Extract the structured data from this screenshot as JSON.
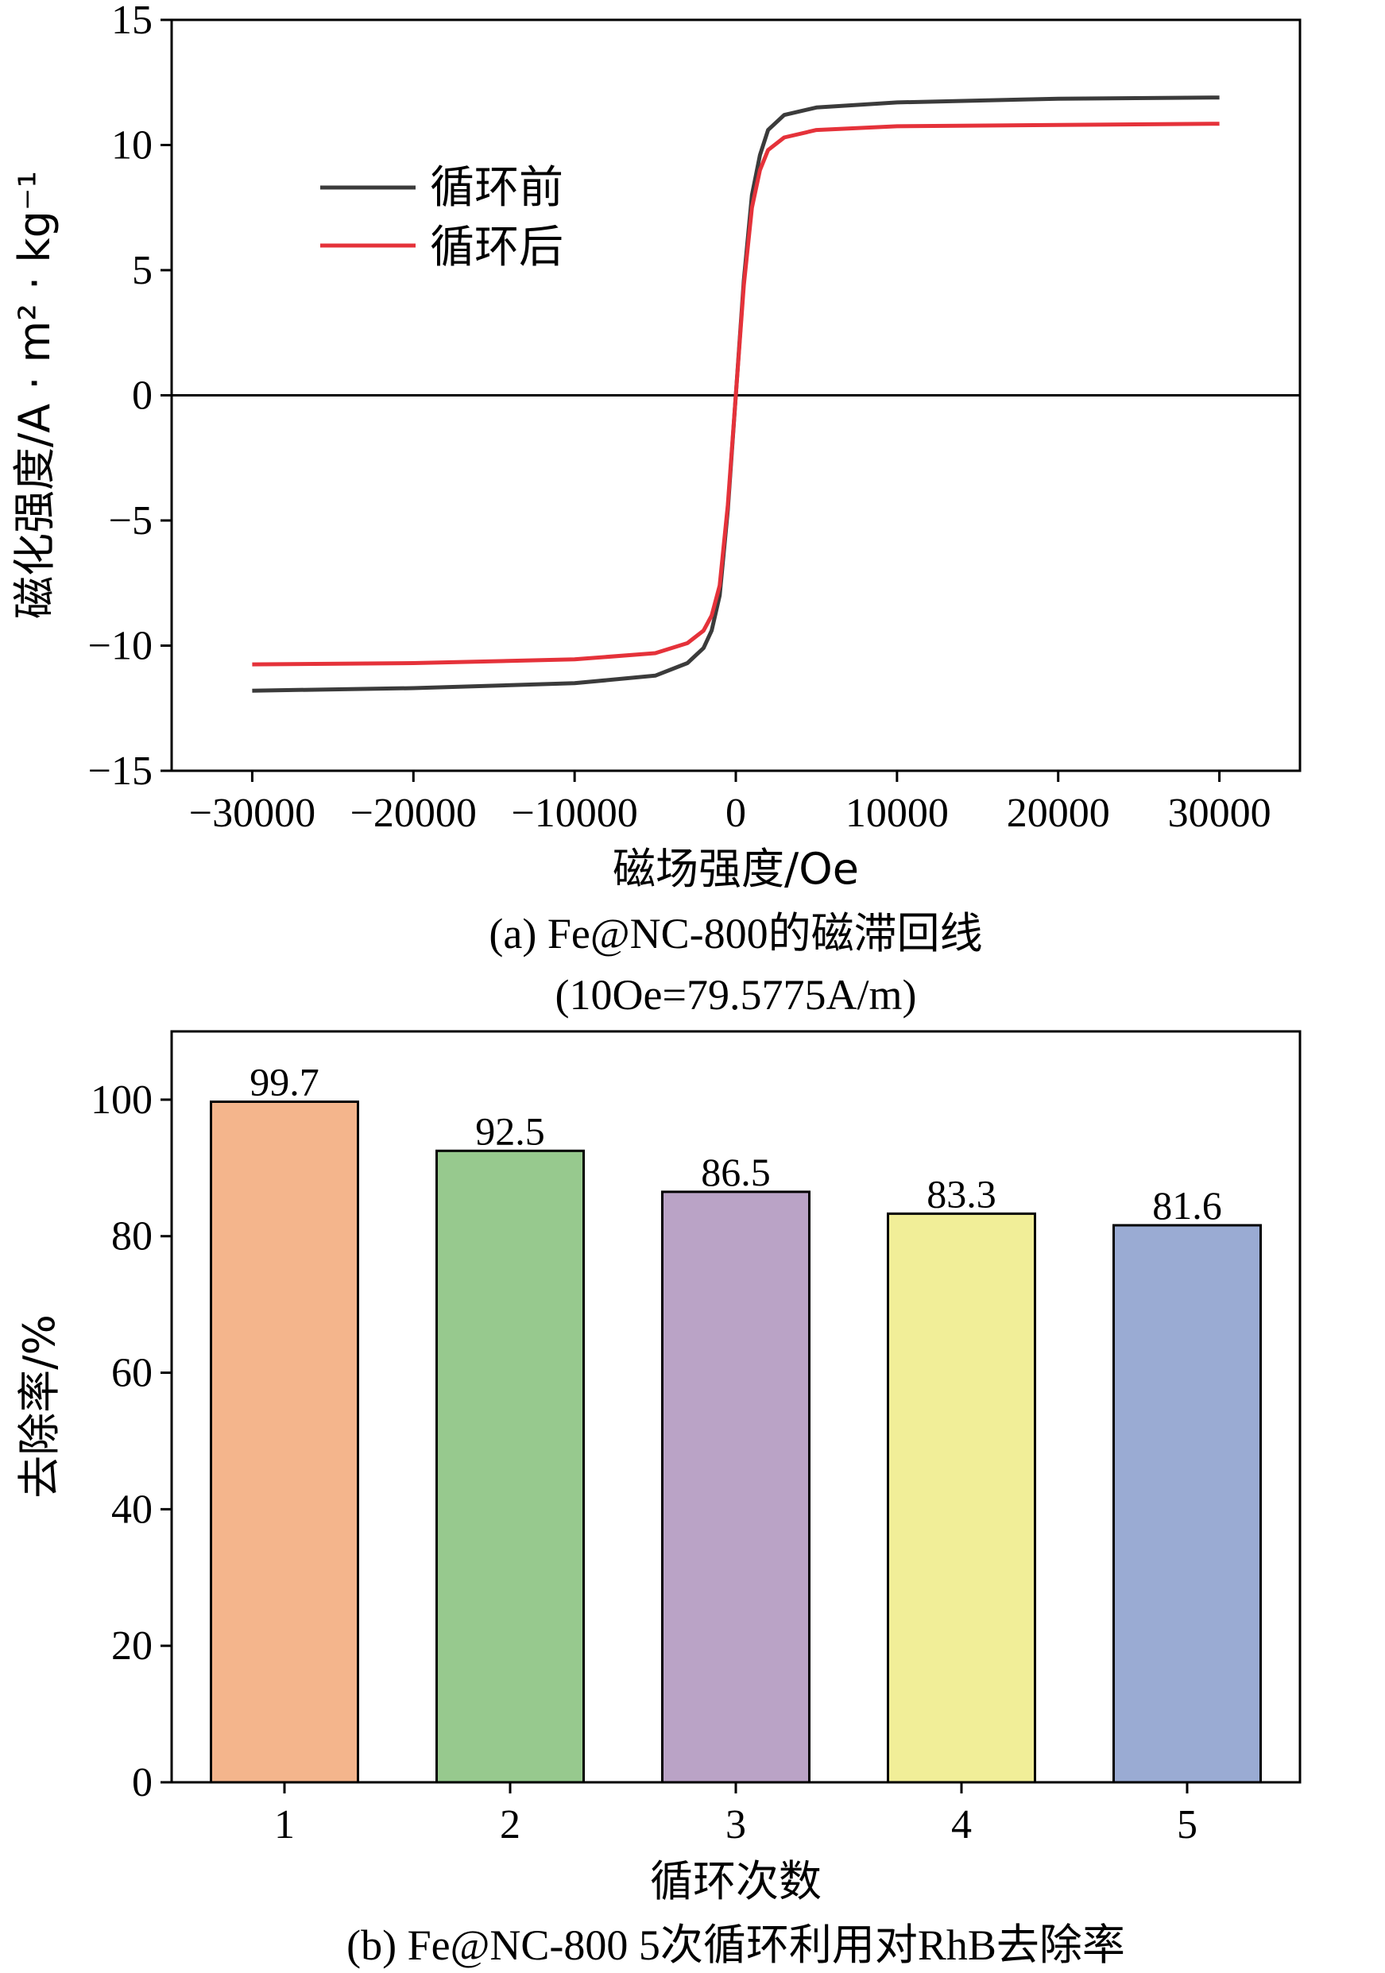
{
  "chart_data": [
    {
      "type": "line",
      "title": "(a) Fe@NC-800的磁滞回线",
      "subtitle": "(10Oe=79.5775A/m)",
      "xlabel": "磁场强度/Oe",
      "ylabel": "磁化强度/A · m² · kg⁻¹",
      "xlim": [
        -35000,
        35000
      ],
      "ylim": [
        -15,
        15
      ],
      "x_ticks": [
        -30000,
        -20000,
        -10000,
        0,
        10000,
        20000,
        30000
      ],
      "x_tick_labels": [
        "−30000",
        "−20000",
        "−10000",
        "0",
        "10000",
        "20000",
        "30000"
      ],
      "y_ticks": [
        -15,
        -10,
        -5,
        0,
        5,
        10,
        15
      ],
      "y_tick_labels": [
        "−15",
        "−10",
        "−5",
        "0",
        "5",
        "10",
        "15"
      ],
      "legend_position": "upper-left",
      "zero_line": true,
      "series": [
        {
          "name": "循环前",
          "color": "#3b3b3b",
          "x": [
            -30000,
            -20000,
            -10000,
            -5000,
            -3000,
            -2000,
            -1500,
            -1000,
            -500,
            0,
            500,
            1000,
            1500,
            2000,
            3000,
            5000,
            10000,
            20000,
            30000
          ],
          "y": [
            -11.8,
            -11.7,
            -11.5,
            -11.2,
            -10.7,
            -10.1,
            -9.4,
            -8.0,
            -4.6,
            0,
            4.6,
            8.0,
            9.6,
            10.6,
            11.2,
            11.5,
            11.7,
            11.85,
            11.9
          ]
        },
        {
          "name": "循环后",
          "color": "#e5323a",
          "x": [
            -30000,
            -20000,
            -10000,
            -5000,
            -3000,
            -2000,
            -1500,
            -1000,
            -500,
            0,
            500,
            1000,
            1500,
            2000,
            3000,
            5000,
            10000,
            20000,
            30000
          ],
          "y": [
            -10.75,
            -10.7,
            -10.55,
            -10.3,
            -9.9,
            -9.4,
            -8.8,
            -7.6,
            -4.4,
            0,
            4.4,
            7.5,
            9.0,
            9.8,
            10.3,
            10.6,
            10.75,
            10.8,
            10.85
          ]
        }
      ]
    },
    {
      "type": "bar",
      "title": "(b) Fe@NC-800 5次循环利用对RhB去除率",
      "xlabel": "循环次数",
      "ylabel": "去除率/%",
      "ylim": [
        0,
        110
      ],
      "y_ticks": [
        0,
        20,
        40,
        60,
        80,
        100
      ],
      "y_tick_labels": [
        "0",
        "20",
        "40",
        "60",
        "80",
        "100"
      ],
      "categories": [
        "1",
        "2",
        "3",
        "4",
        "5"
      ],
      "values": [
        99.7,
        92.5,
        86.5,
        83.3,
        81.6
      ],
      "value_labels": [
        "99.7",
        "92.5",
        "86.5",
        "83.3",
        "81.6"
      ],
      "colors": [
        "#f4b58c",
        "#97c98e",
        "#baa3c6",
        "#f1ee98",
        "#9aabd3"
      ]
    }
  ]
}
